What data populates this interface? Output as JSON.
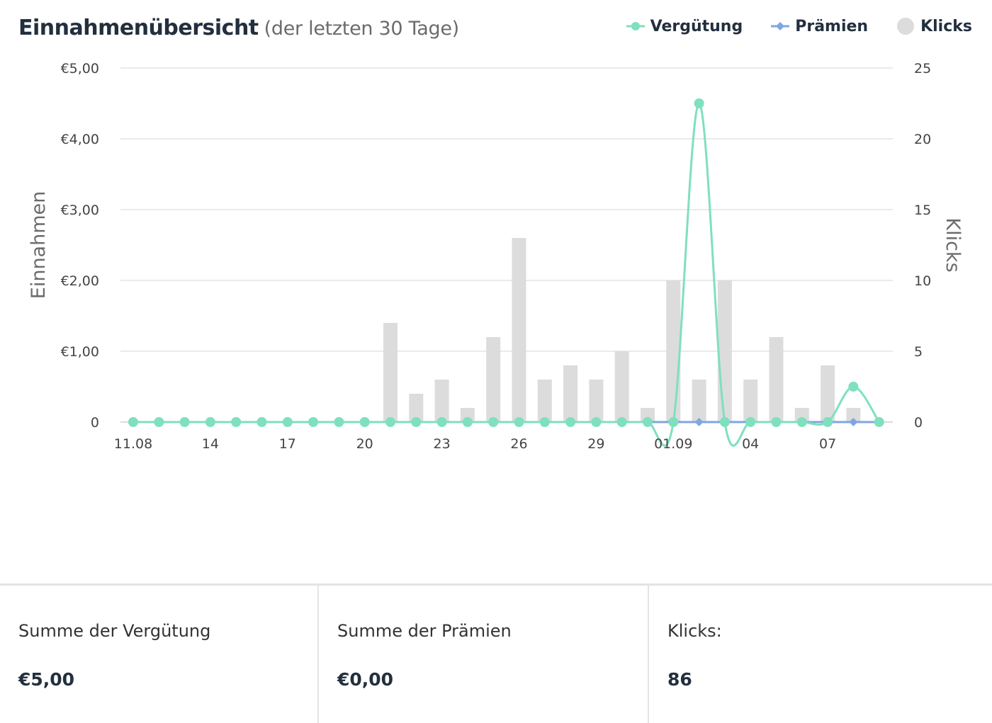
{
  "header": {
    "title": "Einnahmenübersicht",
    "subtitle": "(der letzten 30 Tage)"
  },
  "legend": [
    {
      "label": "Vergütung",
      "color": "#7fe0bd",
      "icon": "circle-marker-icon"
    },
    {
      "label": "Prämien",
      "color": "#7fa6e0",
      "icon": "diamond-marker-icon"
    },
    {
      "label": "Klicks",
      "color": "#dcdcdc",
      "icon": "circle-swatch-icon"
    }
  ],
  "chart_data": {
    "type": "bar",
    "x": [
      "11.08",
      "12.08",
      "13.08",
      "14.08",
      "15.08",
      "16.08",
      "17.08",
      "18.08",
      "19.08",
      "20.08",
      "21.08",
      "22.08",
      "23.08",
      "24.08",
      "25.08",
      "26.08",
      "27.08",
      "28.08",
      "29.08",
      "30.08",
      "31.08",
      "01.09",
      "02.09",
      "03.09",
      "04.09",
      "05.09",
      "06.09",
      "07.09",
      "08.09",
      "09.09"
    ],
    "x_tick_labels": [
      "11.08",
      "14",
      "17",
      "20",
      "23",
      "26",
      "29",
      "01.09",
      "04",
      "07"
    ],
    "xlabel": "",
    "y_left": {
      "label": "Einnahmen",
      "ylim": [
        0,
        5
      ],
      "ticks": [
        "0",
        "€1,00",
        "€2,00",
        "€3,00",
        "€4,00",
        "€5,00"
      ]
    },
    "y_right": {
      "label": "Klicks",
      "ylim": [
        0,
        25
      ],
      "ticks": [
        "0",
        "5",
        "10",
        "15",
        "20",
        "25"
      ]
    },
    "grid": true,
    "legend_position": "top-right",
    "series": [
      {
        "name": "Klicks",
        "type": "bar",
        "axis": "right",
        "color": "#dcdcdc",
        "values": [
          0,
          0,
          0,
          0,
          0,
          0,
          0,
          0,
          0,
          0,
          7,
          2,
          3,
          1,
          6,
          13,
          3,
          4,
          3,
          5,
          1,
          10,
          3,
          10,
          3,
          6,
          1,
          4,
          1,
          0
        ]
      },
      {
        "name": "Vergütung",
        "type": "line",
        "axis": "left",
        "color": "#7fe0bd",
        "values": [
          0,
          0,
          0,
          0,
          0,
          0,
          0,
          0,
          0,
          0,
          0,
          0,
          0,
          0,
          0,
          0,
          0,
          0,
          0,
          0,
          0,
          0,
          4.5,
          0,
          0,
          0,
          0,
          0,
          0.5,
          0
        ]
      },
      {
        "name": "Prämien",
        "type": "line",
        "axis": "left",
        "color": "#7fa6e0",
        "values": [
          0,
          0,
          0,
          0,
          0,
          0,
          0,
          0,
          0,
          0,
          0,
          0,
          0,
          0,
          0,
          0,
          0,
          0,
          0,
          0,
          0,
          0,
          0,
          0,
          0,
          0,
          0,
          0,
          0,
          0
        ]
      }
    ]
  },
  "summary": [
    {
      "label": "Summe der Vergütung",
      "value": "€5,00"
    },
    {
      "label": "Summe der Prämien",
      "value": "€0,00"
    },
    {
      "label": "Klicks:",
      "value": "86"
    }
  ]
}
